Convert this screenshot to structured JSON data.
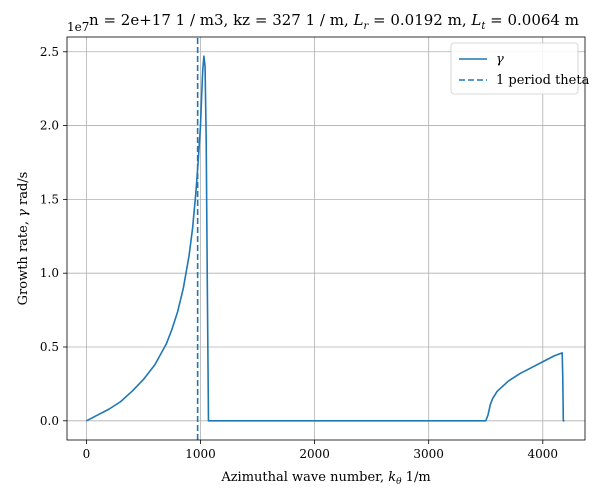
{
  "chart_data": {
    "type": "line",
    "title": "n = 2e+17 1 / m3, kz =  327 1 / m, L_r = 0.0192 m, L_t = 0.0064 m",
    "title_parts": {
      "prefix": "n = 2e+17 1 / m3, kz =  327 1 / m, ",
      "lr_symbol": "L",
      "lr_sub": "r",
      "lr_value": " = 0.0192 m, ",
      "lt_symbol": "L",
      "lt_sub": "t",
      "lt_value": " = 0.0064 m"
    },
    "xlabel_parts": {
      "text": "Azimuthal wave number, ",
      "sym": "k",
      "sub": "θ",
      "unit": " 1/m"
    },
    "ylabel_parts": {
      "text": "Growth rate, ",
      "sym": "γ",
      "unit": " rad/s"
    },
    "y_offset_label": "1e7",
    "xlim": [
      -170,
      4370
    ],
    "ylim": [
      -0.13,
      2.6
    ],
    "xticks": [
      0,
      1000,
      2000,
      3000,
      4000
    ],
    "xtick_labels": [
      "0",
      "1000",
      "2000",
      "3000",
      "4000"
    ],
    "yticks": [
      0.0,
      0.5,
      1.0,
      1.5,
      2.0,
      2.5
    ],
    "ytick_labels": [
      "0.0",
      "0.5",
      "1.0",
      "1.5",
      "2.0",
      "2.5"
    ],
    "grid": true,
    "legend_position": "top-right",
    "series": [
      {
        "name": "γ",
        "style": "solid",
        "color": "#1f77b4",
        "x": [
          0,
          100,
          200,
          300,
          400,
          500,
          600,
          700,
          750,
          800,
          850,
          900,
          930,
          960,
          980,
          1000,
          1010,
          1020,
          1030,
          1040,
          1050,
          1060,
          1070,
          1100,
          2000,
          3000,
          3500,
          3520,
          3540,
          3560,
          3600,
          3700,
          3800,
          3900,
          4000,
          4100,
          4170,
          4175,
          4180,
          4190
        ],
        "y": [
          0.0,
          0.04,
          0.08,
          0.13,
          0.2,
          0.28,
          0.38,
          0.52,
          0.62,
          0.74,
          0.9,
          1.12,
          1.3,
          1.55,
          1.76,
          2.0,
          2.2,
          2.38,
          2.47,
          2.4,
          1.9,
          0.9,
          0.0,
          0.0,
          0.0,
          0.0,
          0.0,
          0.04,
          0.11,
          0.15,
          0.2,
          0.27,
          0.32,
          0.36,
          0.4,
          0.44,
          0.46,
          0.3,
          0.0,
          0.0
        ]
      },
      {
        "name": "1 period theta",
        "style": "dashed",
        "color": "#1f77b4",
        "x": [
          975,
          975
        ],
        "y": [
          -0.13,
          2.6
        ]
      }
    ]
  }
}
